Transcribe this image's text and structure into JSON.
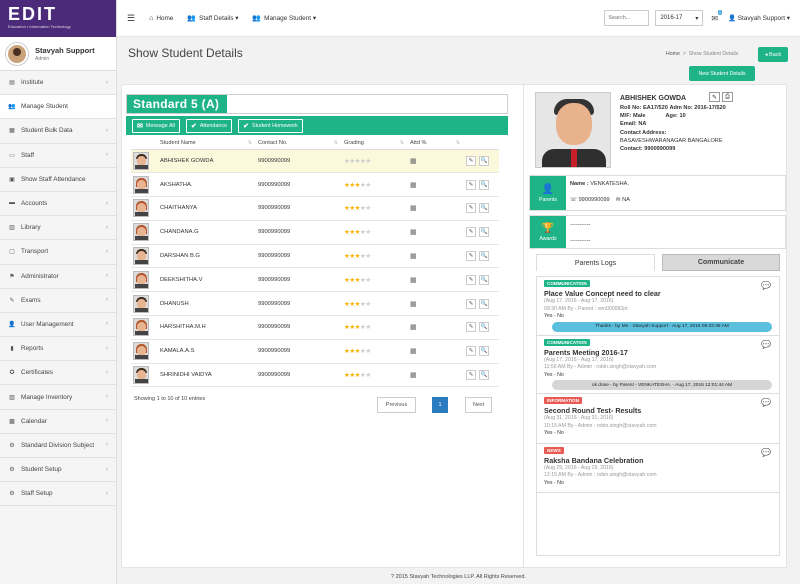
{
  "brand": {
    "name": "EDIT",
    "tagline": "Education • Information Technology"
  },
  "user": {
    "name": "Stavyah Support",
    "role": "Admin"
  },
  "sidebar": {
    "items": [
      {
        "label": "Institute",
        "icon": "institute-icon",
        "chev": true
      },
      {
        "label": "Manage Student",
        "icon": "users-icon",
        "chev": false
      },
      {
        "label": "Student Bulk Data",
        "icon": "table-icon",
        "chev": true
      },
      {
        "label": "Staff",
        "icon": "briefcase-icon",
        "chev": true
      },
      {
        "label": "Show Staff Attendance",
        "icon": "calendar-check-icon",
        "chev": false
      },
      {
        "label": "Accounts",
        "icon": "money-icon",
        "chev": true
      },
      {
        "label": "Library",
        "icon": "book-icon",
        "chev": true
      },
      {
        "label": "Transport",
        "icon": "bus-icon",
        "chev": true
      },
      {
        "label": "Administrator",
        "icon": "admin-icon",
        "chev": true
      },
      {
        "label": "Exams",
        "icon": "exam-icon",
        "chev": true
      },
      {
        "label": "User Management",
        "icon": "user-management-icon",
        "chev": true
      },
      {
        "label": "Reports",
        "icon": "bar-chart-icon",
        "chev": true
      },
      {
        "label": "Certificates",
        "icon": "certificate-icon",
        "chev": true
      },
      {
        "label": "Manage Inventory",
        "icon": "inventory-icon",
        "chev": true
      },
      {
        "label": "Calendar",
        "icon": "calendar-icon",
        "chev": true
      },
      {
        "label": "Standard Division Subject",
        "icon": "gears-icon",
        "chev": true
      },
      {
        "label": "Student Setup",
        "icon": "gears-icon",
        "chev": true
      },
      {
        "label": "Staff Setup",
        "icon": "gears-icon",
        "chev": true
      }
    ]
  },
  "topbar": {
    "home": "Home",
    "staff_details": "Staff Details",
    "manage_student": "Manage Student",
    "search_placeholder": "Search...",
    "year": "2016-17",
    "mail_count": "0",
    "user_menu": "Stavyah Support"
  },
  "page": {
    "title": "Show Student Details",
    "crumb_home": "Home",
    "crumb_current": "Show Student Details",
    "back_label": "Back",
    "new_button": "New Student Details"
  },
  "class": {
    "label": "Standard 5 (A)",
    "actions": [
      "Message All",
      "Attendance",
      "Student Homework"
    ]
  },
  "table": {
    "headers": [
      "Student Name",
      "Contact No.",
      "Grading",
      "Attd %"
    ],
    "rows": [
      {
        "name": "ABHISHEK GOWDA",
        "contact": "9900990099",
        "stars": 0,
        "gender": "m"
      },
      {
        "name": "AKSHATHA.",
        "contact": "9900990099",
        "stars": 3,
        "gender": "f"
      },
      {
        "name": "CHAITHANYA",
        "contact": "9900990099",
        "stars": 3,
        "gender": "f"
      },
      {
        "name": "CHANDANA.G",
        "contact": "9900990099",
        "stars": 3,
        "gender": "f"
      },
      {
        "name": "DARSHAN B.G",
        "contact": "9900990099",
        "stars": 3,
        "gender": "m"
      },
      {
        "name": "DEEKSHITHA.V",
        "contact": "9900990099",
        "stars": 3,
        "gender": "f"
      },
      {
        "name": "DHANUSH",
        "contact": "9900990099",
        "stars": 3,
        "gender": "m"
      },
      {
        "name": "HARSHITHA.M.H",
        "contact": "9900990099",
        "stars": 3,
        "gender": "f"
      },
      {
        "name": "KAMALA.A.S",
        "contact": "9900990099",
        "stars": 3,
        "gender": "f"
      },
      {
        "name": "SHRINIDHI VAIDYA",
        "contact": "9900990099",
        "stars": 3,
        "gender": "m"
      }
    ],
    "showing": "Showing 1 to 10 of 10 entries",
    "prev": "Previous",
    "page": "1",
    "next": "Next"
  },
  "profile": {
    "name": "ABHISHEK GOWDA",
    "roll": "Roll No: EA17/520",
    "adm": "Adm No: 2016-17/520",
    "gender": "M/F: Male",
    "age": "Age: 10",
    "email": "Email: NA",
    "address_label": "Contact Address:",
    "address": "BASAVESHWARANAGAR BANGALORE",
    "contact": "Contact: 9900990099"
  },
  "parents": {
    "label": "Parents",
    "name_label": "Name :",
    "name": "VENKATESHA.",
    "phone": "9900990099",
    "email": "NA"
  },
  "awards": {
    "label": "Awards",
    "line1": "-----------",
    "line2": "-----------"
  },
  "tabs": {
    "logs": "Parents Logs",
    "communicate": "Communicate"
  },
  "logs": [
    {
      "type": "COMMUNICATION",
      "kind": "comm",
      "title": "Place Value Concept need to clear",
      "dates": "(Aug 17, 2016 - Aug 17, 2016)",
      "meta": "09:30 AM By - Parent : ven000082pt",
      "status": "Yes - No",
      "reply": "Thanks - by Me - Stavyah Support - Aug 17, 2016 09:32:38 AM",
      "reply_style": "blue"
    },
    {
      "type": "COMMUNICATION",
      "kind": "comm",
      "title": "Parents Meeting 2016-17",
      "dates": "(Aug 17, 2016 - Aug 17, 2016)",
      "meta": "11:56 AM By - Admin : robin.singh@stavyah.com",
      "status": "Yes - No",
      "reply": "ok done - by Parent - VENKATESHA. - Aug 17, 2016 12:01:44 AM",
      "reply_style": "grey"
    },
    {
      "type": "INFORMATION",
      "kind": "info",
      "title": "Second Round Test- Results",
      "dates": "(Aug 31, 2016 - Aug 31, 2016)",
      "meta": "10:15 AM By - Admin : robin.singh@stavyah.com",
      "status": "Yes - No",
      "reply": "",
      "reply_style": ""
    },
    {
      "type": "NEWS",
      "kind": "news",
      "title": "Raksha Bandana Celebration",
      "dates": "(Aug 29, 2016 - Aug 29, 2016)",
      "meta": "12:15 AM By - Admin : robin.singh@stavyah.com",
      "status": "Yes - No",
      "reply": "",
      "reply_style": ""
    }
  ],
  "footer": "? 2015 Stavyah Technologies LLP. All Rights Reserved."
}
